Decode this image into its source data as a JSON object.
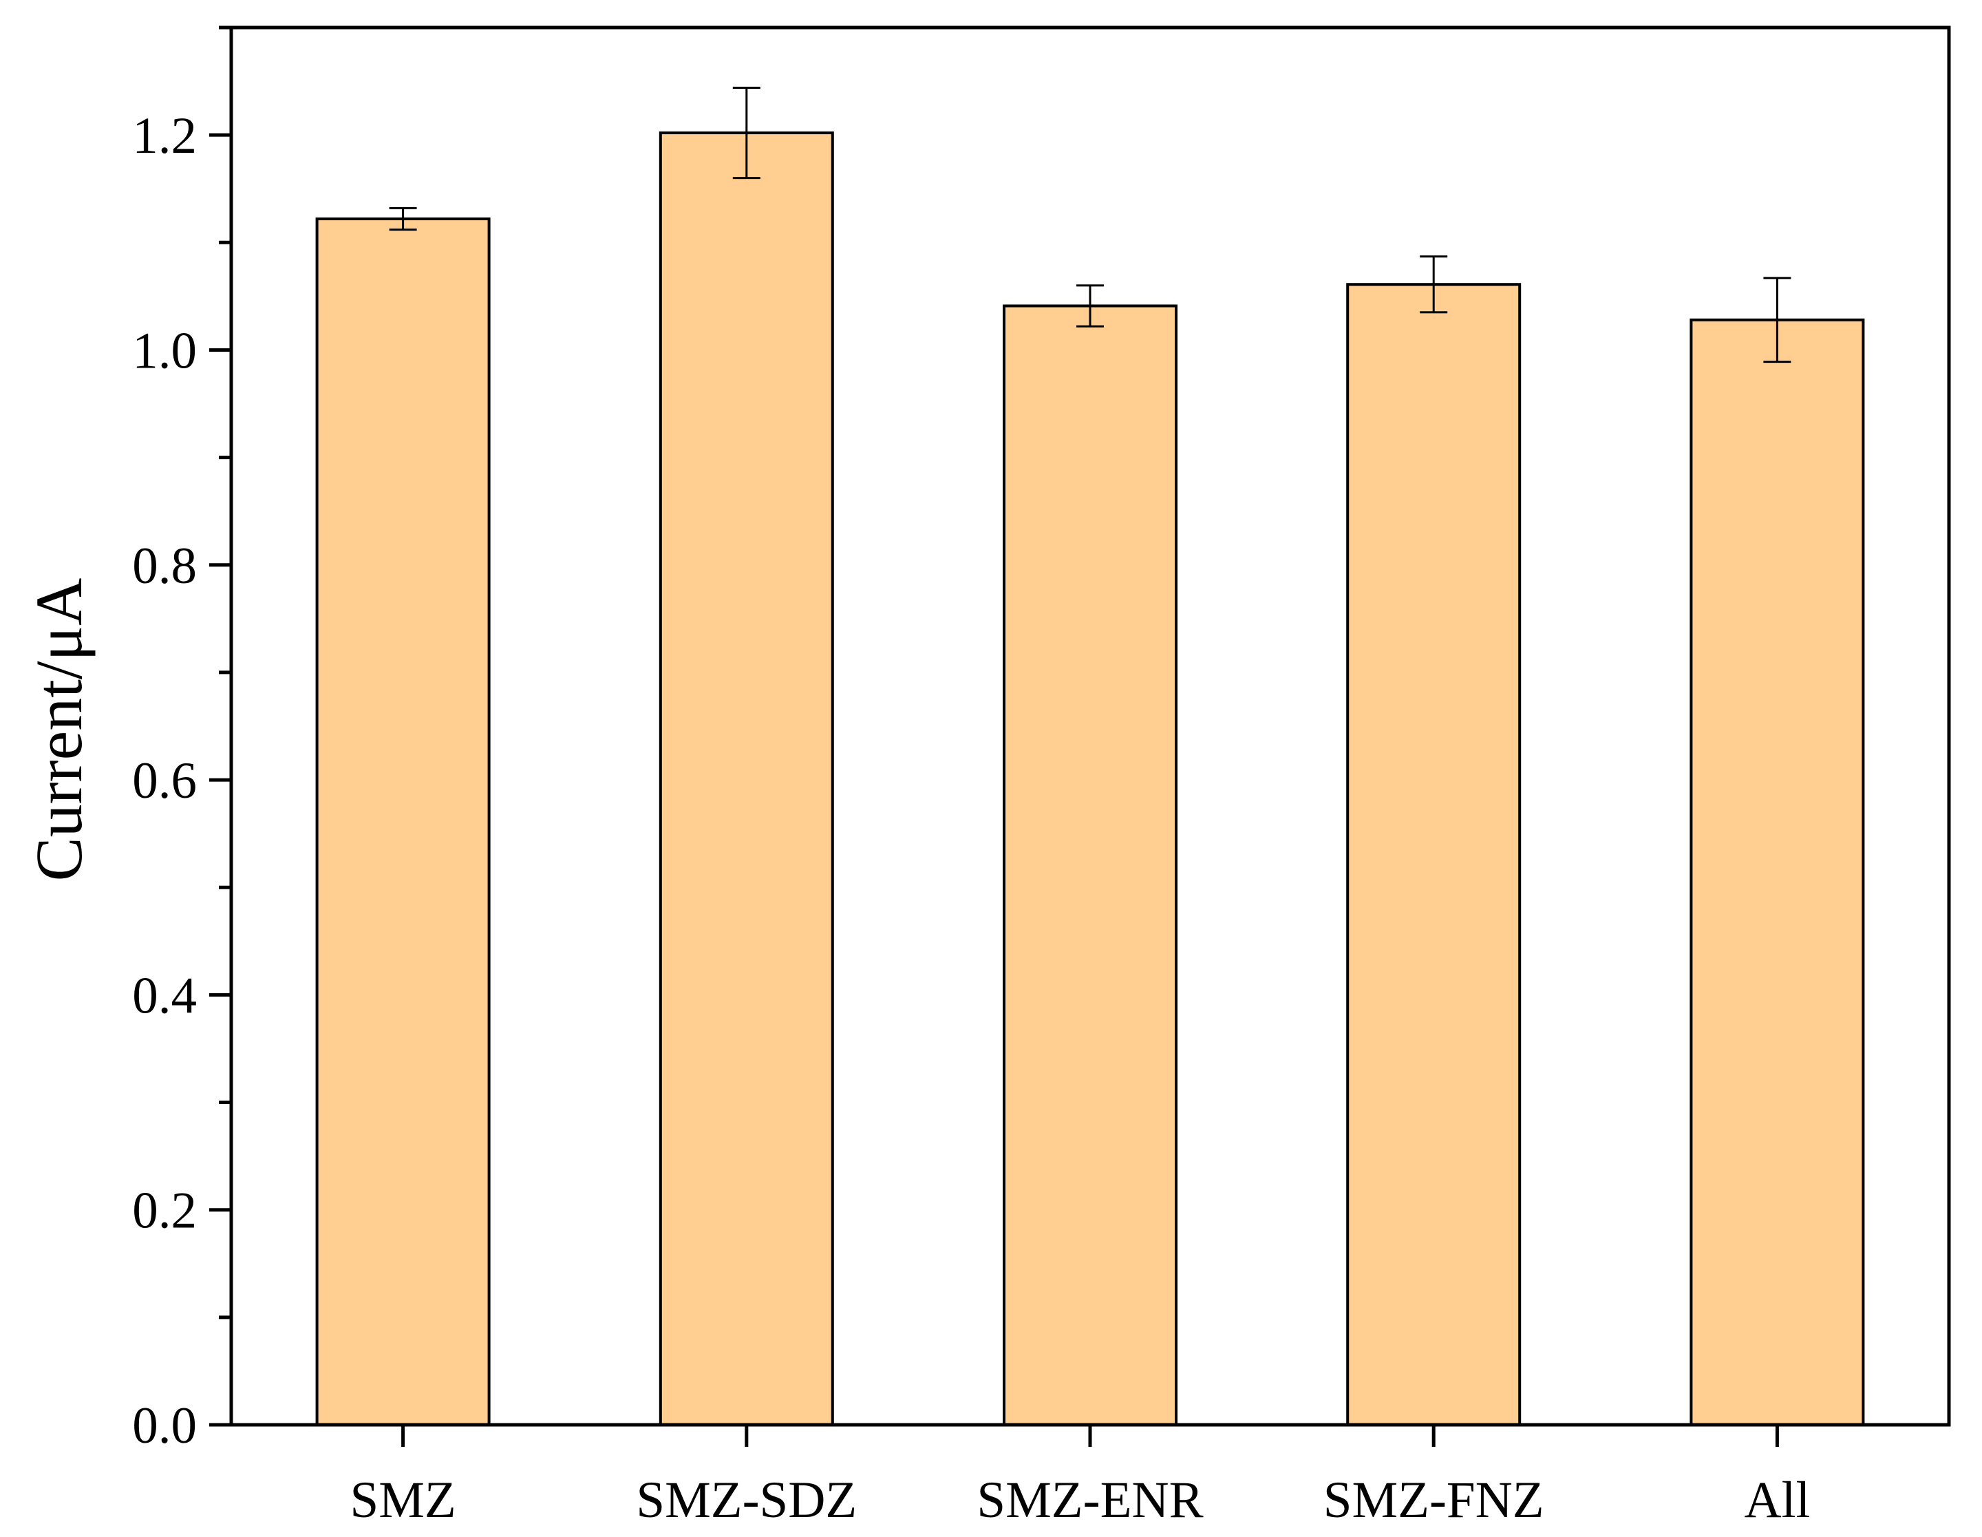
{
  "chart_data": {
    "type": "bar",
    "categories": [
      "SMZ",
      "SMZ-SDZ",
      "SMZ-ENR",
      "SMZ-FNZ",
      "All"
    ],
    "series": [
      {
        "values": [
          1.122,
          1.202,
          1.041,
          1.061,
          1.028
        ],
        "errors": [
          0.01,
          0.042,
          0.019,
          0.026,
          0.039
        ]
      }
    ],
    "title": "",
    "xlabel": "",
    "ylabel": "Current/μA",
    "ylim": [
      0,
      1.3
    ],
    "yticks": [
      "0.0",
      "0.2",
      "0.4",
      "0.6",
      "0.8",
      "1.0",
      "1.2"
    ],
    "grid": false,
    "legend": "none",
    "colors": {
      "bar_fill": "#FFCE90",
      "bar_stroke": "#000000",
      "axis": "#000000",
      "error_bar": "#000000"
    }
  }
}
